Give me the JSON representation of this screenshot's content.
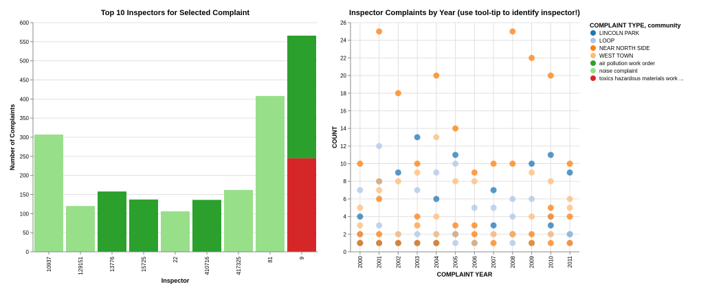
{
  "colors": {
    "air_pollution": "#2ca02c",
    "noise": "#98df8a",
    "toxics": "#d62728",
    "lincoln_park": "#1f77b4",
    "loop": "#aec7e8",
    "near_north_side": "#ff7f0e",
    "west_town": "#ffbb78",
    "grid": "#e0e0e0",
    "axis": "#888888"
  },
  "chart_data": [
    {
      "type": "bar",
      "stacked": true,
      "title": "Top 10 Inspectors for Selected Complaint",
      "xlabel": "Inspector",
      "ylabel": "Number of Complaints",
      "ylim": [
        0,
        600
      ],
      "yticks": [
        0,
        50,
        100,
        150,
        200,
        250,
        300,
        350,
        400,
        450,
        500,
        550,
        600
      ],
      "grid": true,
      "categories": [
        "10937",
        "129151",
        "13776",
        "15725",
        "22",
        "410716",
        "417325",
        "81",
        "9"
      ],
      "series": [
        {
          "name": "toxics hazardous materials work ...",
          "color_key": "toxics",
          "values": [
            0,
            0,
            0,
            0,
            0,
            0,
            0,
            0,
            245
          ]
        },
        {
          "name": "air pollution work order",
          "color_key": "air_pollution",
          "values": [
            0,
            0,
            158,
            137,
            0,
            136,
            0,
            0,
            321
          ]
        },
        {
          "name": "noise complaint",
          "color_key": "noise",
          "values": [
            307,
            120,
            0,
            0,
            106,
            0,
            162,
            408,
            0
          ]
        }
      ]
    },
    {
      "type": "scatter",
      "title": "Inspector Complaints by Year (use tool-tip to identify inspector!)",
      "xlabel": "COMPLAINT YEAR",
      "ylabel": "COUNT",
      "ylim": [
        0,
        26
      ],
      "yticks": [
        0,
        2,
        4,
        6,
        8,
        10,
        12,
        14,
        16,
        18,
        20,
        22,
        24,
        26
      ],
      "grid": true,
      "categories": [
        "2000",
        "2001",
        "2002",
        "2003",
        "2004",
        "2005",
        "2006",
        "2007",
        "2008",
        "2009",
        "2010",
        "2011"
      ],
      "legend": {
        "title": "COMPLAINT TYPE, community",
        "position": "right",
        "items": [
          {
            "label": "LINCOLN PARK",
            "color_key": "lincoln_park"
          },
          {
            "label": "LOOP",
            "color_key": "loop"
          },
          {
            "label": "NEAR NORTH SIDE",
            "color_key": "near_north_side"
          },
          {
            "label": "WEST TOWN",
            "color_key": "west_town"
          },
          {
            "label": "air pollution work order",
            "color_key": "air_pollution"
          },
          {
            "label": "noise complaint",
            "color_key": "noise"
          },
          {
            "label": "toxics hazardous materials work ...",
            "color_key": "toxics"
          }
        ]
      },
      "series": [
        {
          "name": "LINCOLN PARK",
          "color_key": "lincoln_park",
          "points": [
            {
              "x": "2000",
              "y": 4
            },
            {
              "x": "2000",
              "y": 1
            },
            {
              "x": "2001",
              "y": 8
            },
            {
              "x": "2001",
              "y": 1
            },
            {
              "x": "2002",
              "y": 9
            },
            {
              "x": "2002",
              "y": 1
            },
            {
              "x": "2003",
              "y": 13
            },
            {
              "x": "2003",
              "y": 1
            },
            {
              "x": "2004",
              "y": 6
            },
            {
              "x": "2004",
              "y": 1
            },
            {
              "x": "2005",
              "y": 11
            },
            {
              "x": "2005",
              "y": 2
            },
            {
              "x": "2006",
              "y": 1
            },
            {
              "x": "2007",
              "y": 7
            },
            {
              "x": "2007",
              "y": 3
            },
            {
              "x": "2008",
              "y": 2
            },
            {
              "x": "2009",
              "y": 10
            },
            {
              "x": "2009",
              "y": 1
            },
            {
              "x": "2010",
              "y": 11
            },
            {
              "x": "2010",
              "y": 3
            },
            {
              "x": "2011",
              "y": 9
            },
            {
              "x": "2011",
              "y": 2
            }
          ]
        },
        {
          "name": "LOOP",
          "color_key": "loop",
          "points": [
            {
              "x": "2000",
              "y": 7
            },
            {
              "x": "2000",
              "y": 2
            },
            {
              "x": "2001",
              "y": 12
            },
            {
              "x": "2001",
              "y": 3
            },
            {
              "x": "2002",
              "y": 2
            },
            {
              "x": "2003",
              "y": 7
            },
            {
              "x": "2003",
              "y": 2
            },
            {
              "x": "2004",
              "y": 9
            },
            {
              "x": "2004",
              "y": 2
            },
            {
              "x": "2005",
              "y": 10
            },
            {
              "x": "2005",
              "y": 1
            },
            {
              "x": "2006",
              "y": 5
            },
            {
              "x": "2007",
              "y": 5
            },
            {
              "x": "2007",
              "y": 2
            },
            {
              "x": "2008",
              "y": 6
            },
            {
              "x": "2008",
              "y": 4
            },
            {
              "x": "2008",
              "y": 1
            },
            {
              "x": "2009",
              "y": 6
            },
            {
              "x": "2009",
              "y": 1
            },
            {
              "x": "2010",
              "y": 4
            },
            {
              "x": "2010",
              "y": 2
            },
            {
              "x": "2011",
              "y": 2
            },
            {
              "x": "2011",
              "y": 1
            }
          ]
        },
        {
          "name": "NEAR NORTH SIDE",
          "color_key": "near_north_side",
          "points": [
            {
              "x": "2000",
              "y": 10
            },
            {
              "x": "2000",
              "y": 2
            },
            {
              "x": "2000",
              "y": 1
            },
            {
              "x": "2001",
              "y": 25
            },
            {
              "x": "2001",
              "y": 6
            },
            {
              "x": "2001",
              "y": 2
            },
            {
              "x": "2001",
              "y": 1
            },
            {
              "x": "2002",
              "y": 18
            },
            {
              "x": "2002",
              "y": 1
            },
            {
              "x": "2003",
              "y": 10
            },
            {
              "x": "2003",
              "y": 4
            },
            {
              "x": "2003",
              "y": 3
            },
            {
              "x": "2003",
              "y": 1
            },
            {
              "x": "2004",
              "y": 20
            },
            {
              "x": "2004",
              "y": 1
            },
            {
              "x": "2005",
              "y": 14
            },
            {
              "x": "2005",
              "y": 3
            },
            {
              "x": "2006",
              "y": 9
            },
            {
              "x": "2006",
              "y": 3
            },
            {
              "x": "2006",
              "y": 2
            },
            {
              "x": "2007",
              "y": 10
            },
            {
              "x": "2007",
              "y": 1
            },
            {
              "x": "2008",
              "y": 25
            },
            {
              "x": "2008",
              "y": 10
            },
            {
              "x": "2008",
              "y": 2
            },
            {
              "x": "2009",
              "y": 22
            },
            {
              "x": "2009",
              "y": 2
            },
            {
              "x": "2009",
              "y": 1
            },
            {
              "x": "2010",
              "y": 20
            },
            {
              "x": "2010",
              "y": 5
            },
            {
              "x": "2010",
              "y": 4
            },
            {
              "x": "2010",
              "y": 1
            },
            {
              "x": "2011",
              "y": 10
            },
            {
              "x": "2011",
              "y": 4
            },
            {
              "x": "2011",
              "y": 1
            }
          ]
        },
        {
          "name": "WEST TOWN",
          "color_key": "west_town",
          "points": [
            {
              "x": "2000",
              "y": 5
            },
            {
              "x": "2000",
              "y": 3
            },
            {
              "x": "2001",
              "y": 8
            },
            {
              "x": "2001",
              "y": 7
            },
            {
              "x": "2002",
              "y": 8
            },
            {
              "x": "2002",
              "y": 2
            },
            {
              "x": "2003",
              "y": 9
            },
            {
              "x": "2003",
              "y": 3
            },
            {
              "x": "2004",
              "y": 13
            },
            {
              "x": "2004",
              "y": 4
            },
            {
              "x": "2004",
              "y": 2
            },
            {
              "x": "2005",
              "y": 8
            },
            {
              "x": "2005",
              "y": 2
            },
            {
              "x": "2006",
              "y": 1
            },
            {
              "x": "2006",
              "y": 8
            },
            {
              "x": "2007",
              "y": 2
            },
            {
              "x": "2008",
              "y": 2
            },
            {
              "x": "2009",
              "y": 9
            },
            {
              "x": "2009",
              "y": 4
            },
            {
              "x": "2010",
              "y": 8
            },
            {
              "x": "2010",
              "y": 2
            },
            {
              "x": "2011",
              "y": 6
            },
            {
              "x": "2011",
              "y": 5
            }
          ]
        }
      ]
    }
  ]
}
